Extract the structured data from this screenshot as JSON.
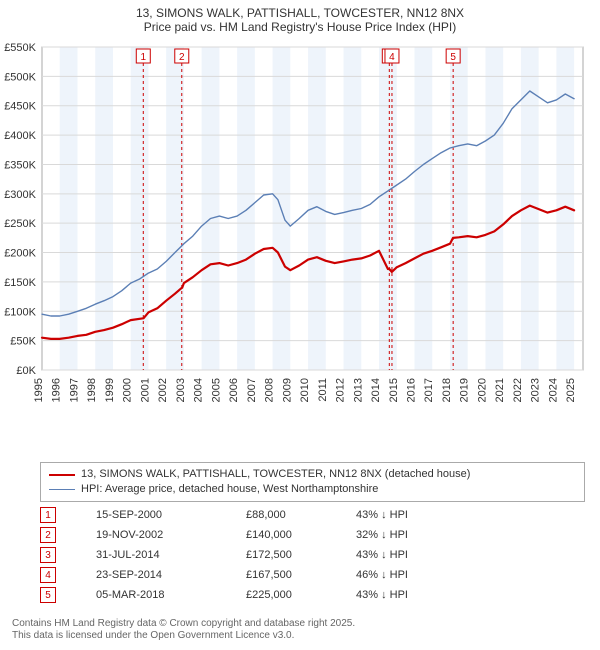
{
  "title": {
    "line1": "13, SIMONS WALK, PATTISHALL, TOWCESTER, NN12 8NX",
    "line2": "Price paid vs. HM Land Registry's House Price Index (HPI)"
  },
  "chart": {
    "type": "line",
    "background_color": "#ffffff",
    "plot_border_color": "#aaaaaa",
    "grid_color": "#d9d9d9",
    "xlim": [
      1995,
      2025.5
    ],
    "ylim": [
      0,
      550
    ],
    "ylabel_suffix": "K",
    "ylabel_prefix": "£",
    "ytick_step": 50,
    "xtick_step": 1,
    "xticks": [
      1995,
      1996,
      1997,
      1998,
      1999,
      2000,
      2001,
      2002,
      2003,
      2004,
      2005,
      2006,
      2007,
      2008,
      2009,
      2010,
      2011,
      2012,
      2013,
      2014,
      2015,
      2016,
      2017,
      2018,
      2019,
      2020,
      2021,
      2022,
      2023,
      2024,
      2025
    ],
    "altbands": {
      "color": "#eef4fb",
      "period": 2,
      "start": 1995
    },
    "series": {
      "hpi": {
        "label": "HPI: Average price, detached house, West Northamptonshire",
        "color": "#5b7fb5",
        "width": 1.4,
        "points": [
          [
            1995,
            95
          ],
          [
            1995.5,
            92
          ],
          [
            1996,
            92
          ],
          [
            1996.5,
            95
          ],
          [
            1997,
            100
          ],
          [
            1997.5,
            105
          ],
          [
            1998,
            112
          ],
          [
            1998.5,
            118
          ],
          [
            1999,
            125
          ],
          [
            1999.5,
            135
          ],
          [
            2000,
            148
          ],
          [
            2000.5,
            155
          ],
          [
            2001,
            165
          ],
          [
            2001.5,
            172
          ],
          [
            2002,
            185
          ],
          [
            2002.5,
            200
          ],
          [
            2003,
            215
          ],
          [
            2003.5,
            228
          ],
          [
            2004,
            245
          ],
          [
            2004.5,
            258
          ],
          [
            2005,
            262
          ],
          [
            2005.5,
            258
          ],
          [
            2006,
            262
          ],
          [
            2006.5,
            272
          ],
          [
            2007,
            285
          ],
          [
            2007.5,
            298
          ],
          [
            2008,
            300
          ],
          [
            2008.3,
            290
          ],
          [
            2008.7,
            255
          ],
          [
            2009,
            245
          ],
          [
            2009.5,
            258
          ],
          [
            2010,
            272
          ],
          [
            2010.5,
            278
          ],
          [
            2011,
            270
          ],
          [
            2011.5,
            265
          ],
          [
            2012,
            268
          ],
          [
            2012.5,
            272
          ],
          [
            2013,
            275
          ],
          [
            2013.5,
            282
          ],
          [
            2014,
            295
          ],
          [
            2014.5,
            305
          ],
          [
            2015,
            315
          ],
          [
            2015.5,
            325
          ],
          [
            2016,
            338
          ],
          [
            2016.5,
            350
          ],
          [
            2017,
            360
          ],
          [
            2017.5,
            370
          ],
          [
            2018,
            378
          ],
          [
            2018.5,
            382
          ],
          [
            2019,
            385
          ],
          [
            2019.5,
            382
          ],
          [
            2020,
            390
          ],
          [
            2020.5,
            400
          ],
          [
            2021,
            420
          ],
          [
            2021.5,
            445
          ],
          [
            2022,
            460
          ],
          [
            2022.5,
            475
          ],
          [
            2023,
            465
          ],
          [
            2023.5,
            455
          ],
          [
            2024,
            460
          ],
          [
            2024.5,
            470
          ],
          [
            2025,
            462
          ]
        ]
      },
      "property": {
        "label": "13, SIMONS WALK, PATTISHALL, TOWCESTER, NN12 8NX (detached house)",
        "color": "#cc0000",
        "width": 2.2,
        "points": [
          [
            1995,
            55
          ],
          [
            1995.5,
            53
          ],
          [
            1996,
            53
          ],
          [
            1996.5,
            55
          ],
          [
            1997,
            58
          ],
          [
            1997.5,
            60
          ],
          [
            1998,
            65
          ],
          [
            1998.5,
            68
          ],
          [
            1999,
            72
          ],
          [
            1999.5,
            78
          ],
          [
            2000,
            85
          ],
          [
            2000.7,
            88
          ],
          [
            2000.72,
            88
          ],
          [
            2001,
            98
          ],
          [
            2001.5,
            105
          ],
          [
            2002,
            118
          ],
          [
            2002.5,
            130
          ],
          [
            2002.88,
            140
          ],
          [
            2002.9,
            140
          ],
          [
            2003,
            148
          ],
          [
            2003.5,
            158
          ],
          [
            2004,
            170
          ],
          [
            2004.5,
            180
          ],
          [
            2005,
            182
          ],
          [
            2005.5,
            178
          ],
          [
            2006,
            182
          ],
          [
            2006.5,
            188
          ],
          [
            2007,
            198
          ],
          [
            2007.5,
            206
          ],
          [
            2008,
            208
          ],
          [
            2008.3,
            200
          ],
          [
            2008.7,
            176
          ],
          [
            2009,
            170
          ],
          [
            2009.5,
            178
          ],
          [
            2010,
            188
          ],
          [
            2010.5,
            192
          ],
          [
            2011,
            186
          ],
          [
            2011.5,
            182
          ],
          [
            2012,
            185
          ],
          [
            2012.5,
            188
          ],
          [
            2013,
            190
          ],
          [
            2013.5,
            195
          ],
          [
            2014,
            203
          ],
          [
            2014.5,
            172
          ],
          [
            2014.58,
            172
          ],
          [
            2014.72,
            167
          ],
          [
            2015,
            175
          ],
          [
            2015.5,
            182
          ],
          [
            2016,
            190
          ],
          [
            2016.5,
            198
          ],
          [
            2017,
            203
          ],
          [
            2017.5,
            209
          ],
          [
            2018,
            215
          ],
          [
            2018.17,
            225
          ],
          [
            2018.18,
            225
          ],
          [
            2018.5,
            226
          ],
          [
            2019,
            228
          ],
          [
            2019.5,
            226
          ],
          [
            2020,
            230
          ],
          [
            2020.5,
            236
          ],
          [
            2021,
            248
          ],
          [
            2021.5,
            262
          ],
          [
            2022,
            272
          ],
          [
            2022.5,
            280
          ],
          [
            2023,
            274
          ],
          [
            2023.5,
            268
          ],
          [
            2024,
            272
          ],
          [
            2024.5,
            278
          ],
          [
            2025,
            272
          ]
        ]
      }
    },
    "events": [
      {
        "n": "1",
        "x": 2000.71
      },
      {
        "n": "2",
        "x": 2002.88
      },
      {
        "n": "3",
        "x": 2014.58
      },
      {
        "n": "4",
        "x": 2014.73
      },
      {
        "n": "5",
        "x": 2018.18
      }
    ],
    "event_line_color": "#cc0000",
    "event_line_dash": "3,3"
  },
  "legend": [
    {
      "color": "#cc0000",
      "width": 2.2,
      "text": "13, SIMONS WALK, PATTISHALL, TOWCESTER, NN12 8NX (detached house)"
    },
    {
      "color": "#5b7fb5",
      "width": 1.4,
      "text": "HPI: Average price, detached house, West Northamptonshire"
    }
  ],
  "sales": [
    {
      "n": "1",
      "date": "15-SEP-2000",
      "price": "£88,000",
      "diff": "43% ↓ HPI"
    },
    {
      "n": "2",
      "date": "19-NOV-2002",
      "price": "£140,000",
      "diff": "32% ↓ HPI"
    },
    {
      "n": "3",
      "date": "31-JUL-2014",
      "price": "£172,500",
      "diff": "43% ↓ HPI"
    },
    {
      "n": "4",
      "date": "23-SEP-2014",
      "price": "£167,500",
      "diff": "46% ↓ HPI"
    },
    {
      "n": "5",
      "date": "05-MAR-2018",
      "price": "£225,000",
      "diff": "43% ↓ HPI"
    }
  ],
  "footer": {
    "line1": "Contains HM Land Registry data © Crown copyright and database right 2025.",
    "line2": "This data is licensed under the Open Government Licence v3.0."
  }
}
